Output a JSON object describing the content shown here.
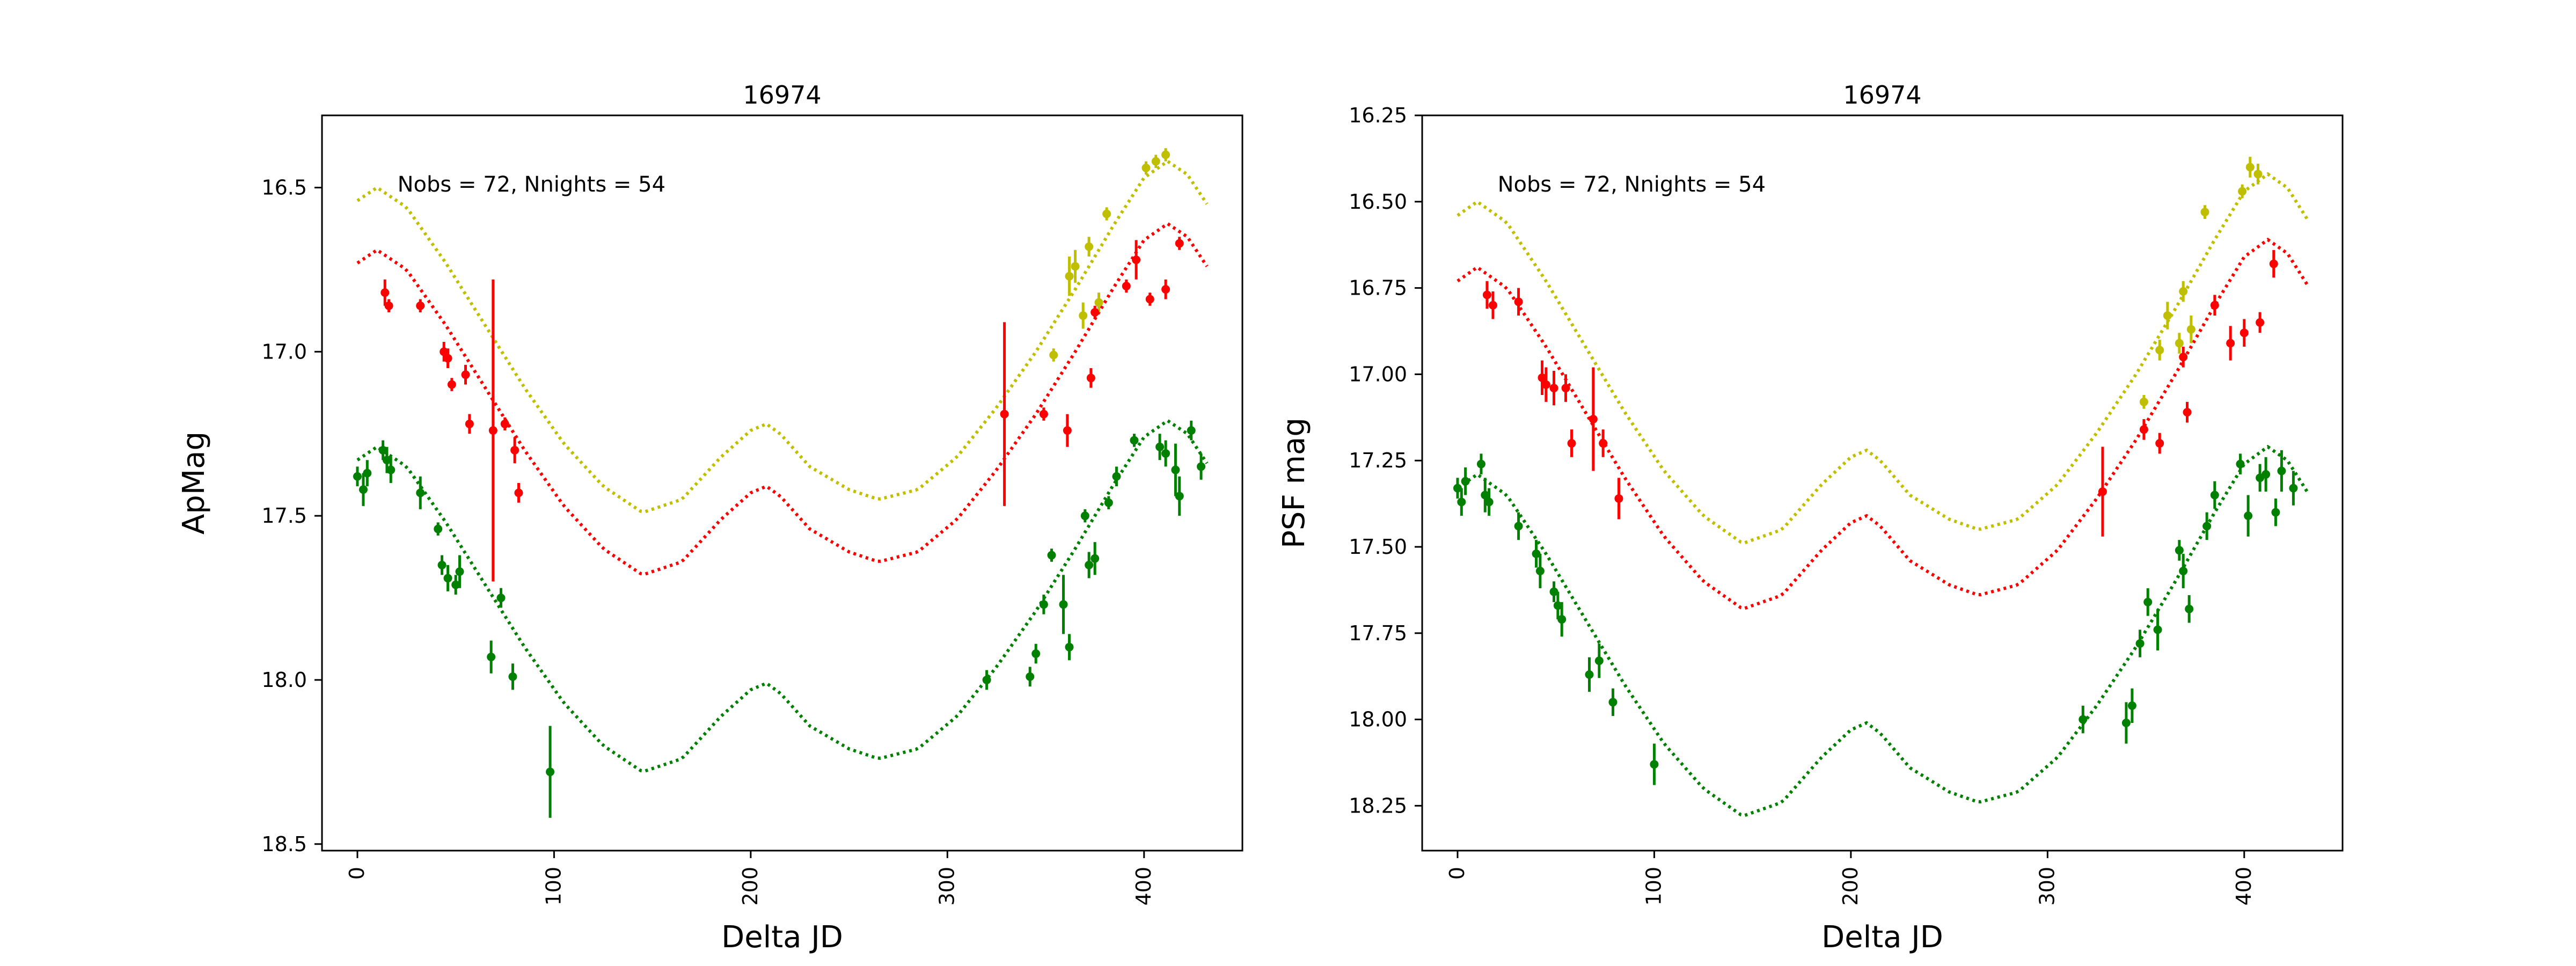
{
  "chart_data": [
    {
      "type": "scatter",
      "title": "16974",
      "xlabel": "Delta JD",
      "ylabel": "ApMag",
      "xlim": [
        -18,
        450
      ],
      "ylim": [
        18.52,
        16.28
      ],
      "y_inverted": true,
      "grid": false,
      "x_ticks": [
        0,
        100,
        200,
        300,
        400
      ],
      "y_ticks": [
        16.5,
        17.0,
        17.5,
        18.0,
        18.5
      ],
      "y_tick_labels": [
        "16.5",
        "17.0",
        "17.5",
        "18.0",
        "18.5"
      ],
      "annotation": "Nobs = 72, Nnights = 54",
      "model_curves": [
        {
          "color": "#bfbf00",
          "offset": -0.79
        },
        {
          "color": "#ff0000",
          "offset": -0.6
        },
        {
          "color": "#008000",
          "offset": 0.0
        }
      ],
      "model_base": {
        "x": [
          0,
          10,
          25,
          45,
          65,
          85,
          105,
          125,
          145,
          165,
          185,
          200,
          208,
          215,
          230,
          250,
          265,
          285,
          305,
          325,
          345,
          365,
          385,
          400,
          412,
          422,
          432
        ],
        "y": [
          17.33,
          17.29,
          17.35,
          17.52,
          17.71,
          17.9,
          18.07,
          18.2,
          18.28,
          18.24,
          18.11,
          18.03,
          18.01,
          18.04,
          18.14,
          18.21,
          18.24,
          18.21,
          18.11,
          17.96,
          17.79,
          17.6,
          17.4,
          17.26,
          17.21,
          17.25,
          17.34
        ]
      },
      "series": [
        {
          "color": "#bfbf00",
          "points": [
            [
              354,
              17.01,
              0.02
            ],
            [
              362,
              16.77,
              0.06
            ],
            [
              365,
              16.74,
              0.05
            ],
            [
              369,
              16.89,
              0.04
            ],
            [
              372,
              16.68,
              0.03
            ],
            [
              377,
              16.85,
              0.03
            ],
            [
              381,
              16.58,
              0.02
            ],
            [
              401,
              16.44,
              0.02
            ],
            [
              406,
              16.42,
              0.02
            ],
            [
              411,
              16.4,
              0.02
            ]
          ]
        },
        {
          "color": "#ff0000",
          "points": [
            [
              14,
              16.82,
              0.04
            ],
            [
              16,
              16.86,
              0.02
            ],
            [
              32,
              16.86,
              0.02
            ],
            [
              44,
              17.0,
              0.03
            ],
            [
              46,
              17.02,
              0.03
            ],
            [
              48,
              17.1,
              0.02
            ],
            [
              55,
              17.07,
              0.03
            ],
            [
              57,
              17.22,
              0.03
            ],
            [
              69,
              17.24,
              0.46
            ],
            [
              75,
              17.22,
              0.02
            ],
            [
              80,
              17.3,
              0.04
            ],
            [
              82,
              17.43,
              0.03
            ],
            [
              329,
              17.19,
              0.28
            ],
            [
              349,
              17.19,
              0.02
            ],
            [
              361,
              17.24,
              0.05
            ],
            [
              373,
              17.08,
              0.03
            ],
            [
              375,
              16.88,
              0.02
            ],
            [
              391,
              16.8,
              0.02
            ],
            [
              396,
              16.72,
              0.06
            ],
            [
              403,
              16.84,
              0.02
            ],
            [
              411,
              16.81,
              0.03
            ],
            [
              418,
              16.67,
              0.02
            ]
          ]
        },
        {
          "color": "#008000",
          "points": [
            [
              0,
              17.38,
              0.03
            ],
            [
              3,
              17.42,
              0.05
            ],
            [
              5,
              17.37,
              0.04
            ],
            [
              13,
              17.3,
              0.03
            ],
            [
              15,
              17.33,
              0.04
            ],
            [
              17,
              17.36,
              0.04
            ],
            [
              32,
              17.43,
              0.05
            ],
            [
              41,
              17.54,
              0.02
            ],
            [
              43,
              17.65,
              0.03
            ],
            [
              46,
              17.69,
              0.04
            ],
            [
              50,
              17.71,
              0.03
            ],
            [
              52,
              17.67,
              0.05
            ],
            [
              68,
              17.93,
              0.05
            ],
            [
              73,
              17.75,
              0.03
            ],
            [
              79,
              17.99,
              0.04
            ],
            [
              98,
              18.28,
              0.14
            ],
            [
              320,
              18.0,
              0.03
            ],
            [
              342,
              17.99,
              0.03
            ],
            [
              345,
              17.92,
              0.03
            ],
            [
              349,
              17.77,
              0.03
            ],
            [
              353,
              17.62,
              0.02
            ],
            [
              359,
              17.77,
              0.09
            ],
            [
              362,
              17.9,
              0.04
            ],
            [
              370,
              17.5,
              0.02
            ],
            [
              372,
              17.65,
              0.04
            ],
            [
              375,
              17.63,
              0.05
            ],
            [
              382,
              17.46,
              0.02
            ],
            [
              386,
              17.38,
              0.03
            ],
            [
              395,
              17.27,
              0.02
            ],
            [
              408,
              17.29,
              0.04
            ],
            [
              411,
              17.31,
              0.04
            ],
            [
              416,
              17.36,
              0.08
            ],
            [
              418,
              17.44,
              0.06
            ],
            [
              424,
              17.24,
              0.03
            ],
            [
              429,
              17.35,
              0.04
            ]
          ]
        }
      ]
    },
    {
      "type": "scatter",
      "title": "16974",
      "xlabel": "Delta JD",
      "ylabel": "PSF mag",
      "xlim": [
        -18,
        450
      ],
      "ylim": [
        18.38,
        16.25
      ],
      "y_inverted": true,
      "grid": false,
      "x_ticks": [
        0,
        100,
        200,
        300,
        400
      ],
      "y_ticks": [
        16.25,
        16.5,
        16.75,
        17.0,
        17.25,
        17.5,
        17.75,
        18.0,
        18.25
      ],
      "y_tick_labels": [
        "16.25",
        "16.50",
        "16.75",
        "17.00",
        "17.25",
        "17.50",
        "17.75",
        "18.00",
        "18.25"
      ],
      "annotation": "Nobs = 72, Nnights = 54",
      "model_curves": [
        {
          "color": "#bfbf00",
          "offset": -0.79
        },
        {
          "color": "#ff0000",
          "offset": -0.6
        },
        {
          "color": "#008000",
          "offset": 0.0
        }
      ],
      "model_base": {
        "x": [
          0,
          10,
          25,
          45,
          65,
          85,
          105,
          125,
          145,
          165,
          185,
          200,
          208,
          215,
          230,
          250,
          265,
          285,
          305,
          325,
          345,
          365,
          385,
          400,
          412,
          422,
          432
        ],
        "y": [
          17.33,
          17.29,
          17.35,
          17.52,
          17.71,
          17.9,
          18.07,
          18.2,
          18.28,
          18.24,
          18.11,
          18.03,
          18.01,
          18.04,
          18.14,
          18.21,
          18.24,
          18.21,
          18.11,
          17.96,
          17.79,
          17.6,
          17.4,
          17.26,
          17.21,
          17.25,
          17.34
        ]
      },
      "series": [
        {
          "color": "#bfbf00",
          "points": [
            [
              349,
              17.08,
              0.02
            ],
            [
              357,
              16.93,
              0.03
            ],
            [
              361,
              16.83,
              0.04
            ],
            [
              367,
              16.91,
              0.03
            ],
            [
              369,
              16.76,
              0.03
            ],
            [
              373,
              16.87,
              0.04
            ],
            [
              380,
              16.53,
              0.02
            ],
            [
              399,
              16.47,
              0.02
            ],
            [
              403,
              16.4,
              0.03
            ],
            [
              407,
              16.42,
              0.03
            ]
          ]
        },
        {
          "color": "#ff0000",
          "points": [
            [
              15,
              16.77,
              0.04
            ],
            [
              18,
              16.8,
              0.04
            ],
            [
              31,
              16.79,
              0.04
            ],
            [
              43,
              17.01,
              0.05
            ],
            [
              45,
              17.03,
              0.05
            ],
            [
              49,
              17.04,
              0.05
            ],
            [
              55,
              17.04,
              0.04
            ],
            [
              58,
              17.2,
              0.04
            ],
            [
              69,
              17.13,
              0.15
            ],
            [
              74,
              17.2,
              0.04
            ],
            [
              82,
              17.36,
              0.06
            ],
            [
              328,
              17.34,
              0.13
            ],
            [
              349,
              17.16,
              0.03
            ],
            [
              357,
              17.2,
              0.03
            ],
            [
              369,
              16.95,
              0.03
            ],
            [
              371,
              17.11,
              0.03
            ],
            [
              385,
              16.8,
              0.03
            ],
            [
              393,
              16.91,
              0.05
            ],
            [
              400,
              16.88,
              0.04
            ],
            [
              408,
              16.85,
              0.03
            ],
            [
              415,
              16.68,
              0.04
            ]
          ]
        },
        {
          "color": "#008000",
          "points": [
            [
              0,
              17.33,
              0.03
            ],
            [
              2,
              17.37,
              0.04
            ],
            [
              4,
              17.31,
              0.04
            ],
            [
              12,
              17.26,
              0.03
            ],
            [
              14,
              17.35,
              0.05
            ],
            [
              16,
              17.37,
              0.04
            ],
            [
              31,
              17.44,
              0.04
            ],
            [
              40,
              17.52,
              0.04
            ],
            [
              42,
              17.57,
              0.05
            ],
            [
              49,
              17.63,
              0.03
            ],
            [
              51,
              17.67,
              0.04
            ],
            [
              53,
              17.71,
              0.05
            ],
            [
              67,
              17.87,
              0.05
            ],
            [
              72,
              17.83,
              0.05
            ],
            [
              79,
              17.95,
              0.04
            ],
            [
              100,
              18.13,
              0.06
            ],
            [
              318,
              18.0,
              0.04
            ],
            [
              340,
              18.01,
              0.06
            ],
            [
              343,
              17.96,
              0.05
            ],
            [
              347,
              17.78,
              0.04
            ],
            [
              351,
              17.66,
              0.04
            ],
            [
              356,
              17.74,
              0.06
            ],
            [
              367,
              17.51,
              0.03
            ],
            [
              369,
              17.57,
              0.05
            ],
            [
              372,
              17.68,
              0.04
            ],
            [
              381,
              17.44,
              0.04
            ],
            [
              385,
              17.35,
              0.04
            ],
            [
              398,
              17.26,
              0.03
            ],
            [
              402,
              17.41,
              0.06
            ],
            [
              408,
              17.3,
              0.04
            ],
            [
              411,
              17.29,
              0.05
            ],
            [
              416,
              17.4,
              0.04
            ],
            [
              419,
              17.28,
              0.06
            ],
            [
              425,
              17.33,
              0.05
            ]
          ]
        }
      ]
    }
  ]
}
